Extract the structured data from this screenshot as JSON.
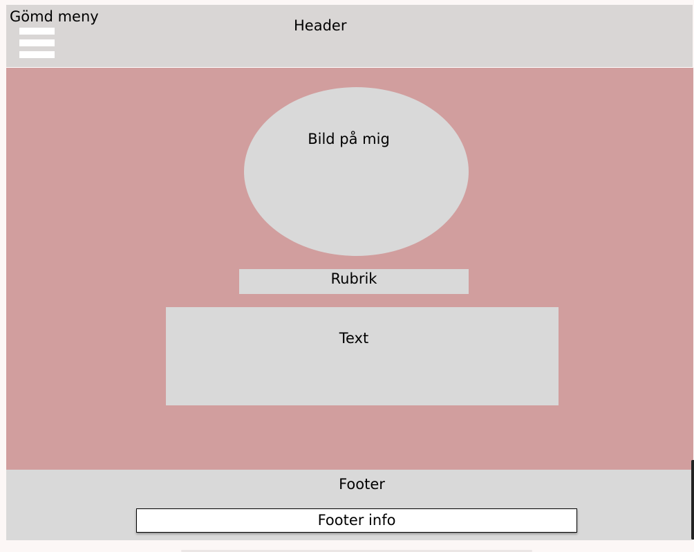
{
  "header": {
    "hidden_menu_label": "Gömd meny",
    "title": "Header"
  },
  "main": {
    "photo_label": "Bild på mig",
    "heading_label": "Rubrik",
    "text_label": "Text"
  },
  "footer": {
    "title": "Footer",
    "info_label": "Footer info"
  },
  "colors": {
    "header_bg": "#d9d6d5",
    "main_bg": "#d19e9e",
    "placeholder_bg": "#d9d9d9",
    "footer_bg": "#d9d9d9",
    "menu_bar": "#ffffff"
  },
  "icons": {
    "menu": "hamburger-menu-icon"
  }
}
